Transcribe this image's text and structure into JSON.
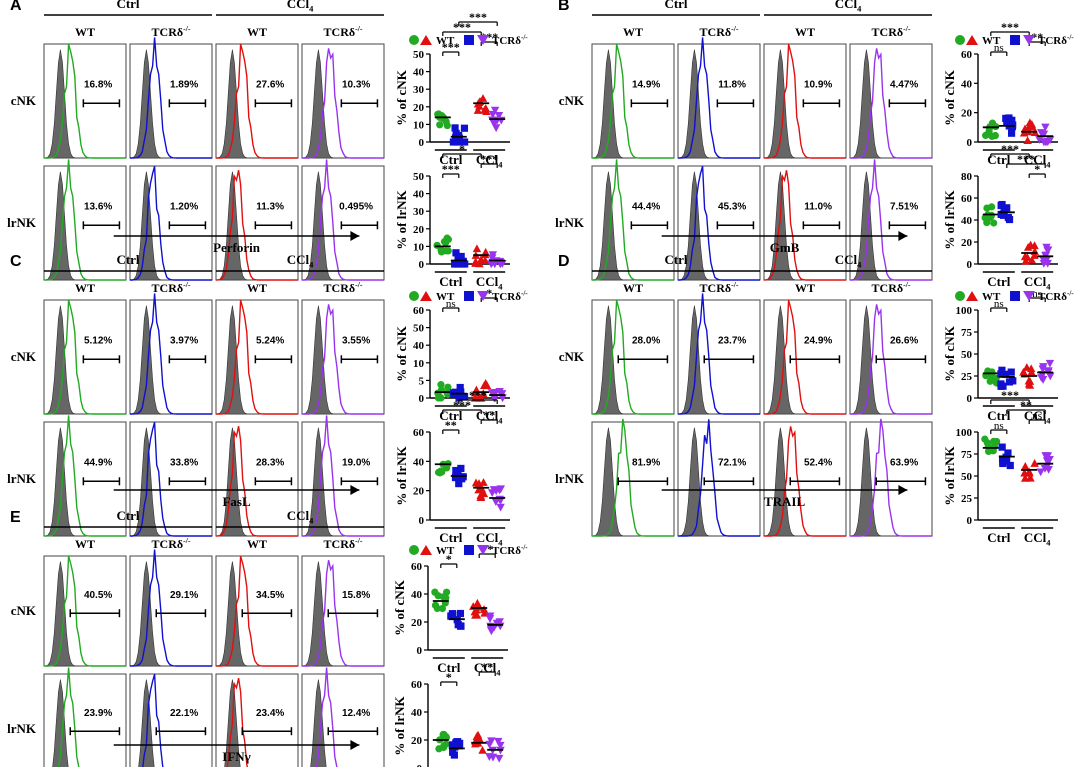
{
  "figure": {
    "panel_letters": [
      "A",
      "B",
      "C",
      "D",
      "E"
    ],
    "condition_labels": [
      "Ctrl",
      "CCl4"
    ],
    "genotype_labels": [
      "WT",
      "TCRδ-/-"
    ],
    "cell_labels": [
      "cNK",
      "lrNK"
    ],
    "legend": {
      "wt": "WT",
      "ko": "TCRδ-/-"
    },
    "colors": {
      "wt": "#22aa22",
      "ccl4_wt": "#e01010",
      "ko": "#1010d0",
      "ccl4_ko": "#9933ee",
      "iso": "#666666"
    }
  },
  "panels": [
    {
      "letter": "A",
      "marker": "Perforin",
      "hist_percents": {
        "cNK": [
          "16.8%",
          "1.89%",
          "27.6%",
          "10.3%"
        ],
        "lrNK": [
          "13.6%",
          "1.20%",
          "11.3%",
          "0.495%"
        ]
      },
      "plots": {
        "cNK": {
          "ylabel": "% of cNK",
          "ticks": [
            "0",
            "10",
            "20",
            "30",
            "40",
            "50"
          ],
          "means": [
            14,
            3,
            22,
            13
          ],
          "sig": [
            {
              "a": 0,
              "b": 1,
              "t": "***"
            },
            {
              "a": 2,
              "b": 3,
              "t": "***"
            },
            {
              "a": 0,
              "b": 2,
              "t": "***"
            },
            {
              "a": 1,
              "b": 3,
              "t": "***"
            }
          ]
        },
        "lrNK": {
          "ylabel": "% of lrNK",
          "ticks": [
            "0",
            "10",
            "20",
            "30",
            "40",
            "50"
          ],
          "means": [
            10,
            2,
            5,
            2
          ],
          "sig": [
            {
              "a": 0,
              "b": 1,
              "t": "***"
            },
            {
              "a": 2,
              "b": 3,
              "t": "***"
            },
            {
              "a": 0,
              "b": 2,
              "t": "*"
            }
          ]
        }
      }
    },
    {
      "letter": "B",
      "marker": "GmB",
      "hist_percents": {
        "cNK": [
          "14.9%",
          "11.8%",
          "10.9%",
          "4.47%"
        ],
        "lrNK": [
          "44.4%",
          "45.3%",
          "11.0%",
          "7.51%"
        ]
      },
      "plots": {
        "cNK": {
          "ylabel": "% of cNK",
          "ticks": [
            "0",
            "20",
            "40",
            "60"
          ],
          "means": [
            10,
            11,
            7,
            4
          ],
          "sig": [
            {
              "a": 0,
              "b": 1,
              "t": "ns"
            },
            {
              "a": 2,
              "b": 3,
              "t": "**"
            },
            {
              "a": 0,
              "b": 2,
              "t": "***"
            }
          ]
        },
        "lrNK": {
          "ylabel": "% of lrNK",
          "ticks": [
            "0",
            "20",
            "40",
            "60",
            "80"
          ],
          "means": [
            45,
            47,
            10,
            7
          ],
          "sig": [
            {
              "a": 2,
              "b": 3,
              "t": "*"
            },
            {
              "a": 1,
              "b": 3,
              "t": "***"
            },
            {
              "a": 0,
              "b": 2,
              "t": "***"
            }
          ]
        }
      }
    },
    {
      "letter": "C",
      "marker": "FasL",
      "hist_percents": {
        "cNK": [
          "5.12%",
          "3.97%",
          "5.24%",
          "3.55%"
        ],
        "lrNK": [
          "44.9%",
          "33.8%",
          "28.3%",
          "19.0%"
        ]
      },
      "plots": {
        "cNK": {
          "ylabel": "% of cNK",
          "ticks": [
            "0",
            "5",
            "10",
            "40",
            "50",
            "60"
          ],
          "means": [
            4,
            3,
            4,
            2
          ],
          "sig": [
            {
              "a": 0,
              "b": 1,
              "t": "ns"
            },
            {
              "a": 2,
              "b": 3,
              "t": "*"
            }
          ]
        },
        "lrNK": {
          "ylabel": "% of lrNK",
          "ticks": [
            "0",
            "20",
            "40",
            "60"
          ],
          "means": [
            38,
            30,
            22,
            15
          ],
          "sig": [
            {
              "a": 0,
              "b": 1,
              "t": "**"
            },
            {
              "a": 2,
              "b": 3,
              "t": "**"
            },
            {
              "a": 0,
              "b": 2,
              "t": "***"
            },
            {
              "a": 1,
              "b": 3,
              "t": "***"
            }
          ]
        }
      }
    },
    {
      "letter": "D",
      "marker": "TRAIL",
      "hist_percents": {
        "cNK": [
          "28.0%",
          "23.7%",
          "24.9%",
          "26.6%"
        ],
        "lrNK": [
          "81.9%",
          "72.1%",
          "52.4%",
          "63.9%"
        ]
      },
      "plots": {
        "cNK": {
          "ylabel": "% of cNK",
          "ticks": [
            "0",
            "25",
            "50",
            "75",
            "100"
          ],
          "means": [
            28,
            24,
            25,
            29
          ],
          "sig": [
            {
              "a": 0,
              "b": 1,
              "t": "ns"
            },
            {
              "a": 2,
              "b": 3,
              "t": "ns"
            }
          ]
        },
        "lrNK": {
          "ylabel": "% of lrNK",
          "ticks": [
            "0",
            "25",
            "50",
            "75",
            "100"
          ],
          "means": [
            82,
            72,
            57,
            64
          ],
          "sig": [
            {
              "a": 0,
              "b": 1,
              "t": "ns"
            },
            {
              "a": 2,
              "b": 3,
              "t": "ns"
            },
            {
              "a": 1,
              "b": 3,
              "t": "**"
            },
            {
              "a": 0,
              "b": 2,
              "t": "***"
            }
          ]
        }
      }
    },
    {
      "letter": "E",
      "marker": "IFNγ",
      "hist_percents": {
        "cNK": [
          "40.5%",
          "29.1%",
          "34.5%",
          "15.8%"
        ],
        "lrNK": [
          "23.9%",
          "22.1%",
          "23.4%",
          "12.4%"
        ]
      },
      "plots": {
        "cNK": {
          "ylabel": "% of cNK",
          "ticks": [
            "0",
            "20",
            "40",
            "60"
          ],
          "means": [
            35,
            22,
            30,
            18
          ],
          "sig": [
            {
              "a": 0,
              "b": 1,
              "t": "*"
            },
            {
              "a": 2,
              "b": 3,
              "t": "**"
            }
          ]
        },
        "lrNK": {
          "ylabel": "% of lrNK",
          "ticks": [
            "0",
            "20",
            "40",
            "60"
          ],
          "means": [
            20,
            14,
            18,
            13
          ],
          "sig": [
            {
              "a": 0,
              "b": 1,
              "t": "*"
            },
            {
              "a": 2,
              "b": 3,
              "t": "**"
            }
          ]
        }
      }
    }
  ]
}
